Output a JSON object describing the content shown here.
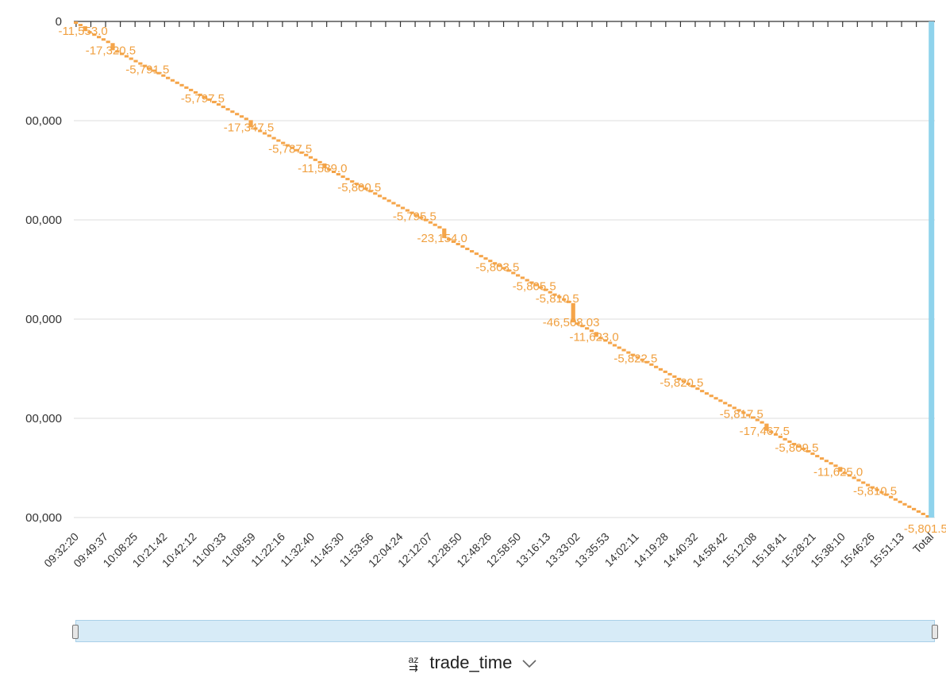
{
  "chart_data": {
    "type": "waterfall",
    "title": "",
    "xlabel": "",
    "ylabel": "",
    "y_axis": {
      "ticks": [
        0,
        -200000,
        -400000,
        -600000,
        -800000,
        -1000000
      ],
      "tick_labels": [
        "0",
        "00,000",
        "00,000",
        "00,000",
        "00,000",
        "00,000"
      ],
      "range": [
        -1000000,
        0
      ]
    },
    "x_tick_labels": [
      "09:32:20",
      "09:49:37",
      "10:08:25",
      "10:21:42",
      "10:42:12",
      "11:00:33",
      "11:08:59",
      "11:22:16",
      "11:32:40",
      "11:45:30",
      "11:53:56",
      "12:04:24",
      "12:12:07",
      "12:28:50",
      "12:48:26",
      "12:58:50",
      "13:16:13",
      "13:33:02",
      "13:35:53",
      "14:02:11",
      "14:19:28",
      "14:40:32",
      "14:58:42",
      "15:12:08",
      "15:18:41",
      "15:28:21",
      "15:38:10",
      "15:46:26",
      "15:51:13",
      "Total"
    ],
    "steps": {
      "count": 186,
      "typical_delta": -5800,
      "cumulative_end": -1000000
    },
    "data_labels": [
      {
        "text": "-11,553.0",
        "step": 3
      },
      {
        "text": "-17,320.5",
        "step": 9
      },
      {
        "text": "-5,791.5",
        "step": 17
      },
      {
        "text": "-5,797.5",
        "step": 29
      },
      {
        "text": "-17,347.5",
        "step": 39
      },
      {
        "text": "-5,787.5",
        "step": 48
      },
      {
        "text": "-11,589.0",
        "step": 55
      },
      {
        "text": "-5,800.5",
        "step": 63
      },
      {
        "text": "-5,795.5",
        "step": 75
      },
      {
        "text": "-23,154.0",
        "step": 81
      },
      {
        "text": "-5,803.5",
        "step": 93
      },
      {
        "text": "-5,805.5",
        "step": 101
      },
      {
        "text": "-5,810.5",
        "step": 106
      },
      {
        "text": "-46,508.03",
        "step": 109
      },
      {
        "text": "-11,623.0",
        "step": 114
      },
      {
        "text": "-5,822.5",
        "step": 123
      },
      {
        "text": "-5,820.5",
        "step": 133
      },
      {
        "text": "-5,817.5",
        "step": 146
      },
      {
        "text": "-17,467.5",
        "step": 151
      },
      {
        "text": "-5,809.5",
        "step": 158
      },
      {
        "text": "-11,625.0",
        "step": 167
      },
      {
        "text": "-5,810.5",
        "step": 175
      },
      {
        "text": "-5,801.5",
        "step": 186
      }
    ],
    "colors": {
      "decrease": "#f5a54a",
      "total": "#8fd3ec"
    },
    "grid": true
  },
  "ui": {
    "field_name": "trade_time",
    "sort_icon": "az-sort-icon",
    "chevron_icon": "chevron-down-icon"
  }
}
